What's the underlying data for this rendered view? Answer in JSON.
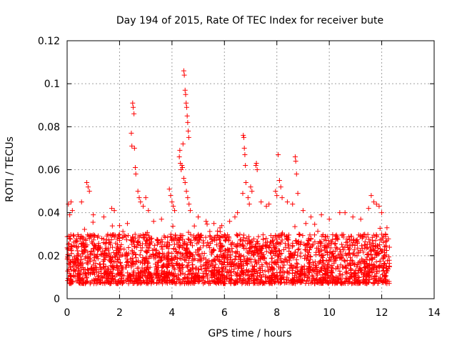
{
  "chart_data": {
    "type": "scatter",
    "title": "Day 194 of 2015, Rate Of TEC Index for receiver bute",
    "xlabel": "GPS time / hours",
    "ylabel": "ROTI / TECUs",
    "xlim": [
      0,
      14
    ],
    "ylim": [
      0,
      0.12
    ],
    "xticks": [
      0,
      2,
      4,
      6,
      8,
      10,
      12,
      14
    ],
    "xtick_labels": [
      "0",
      "2",
      "4",
      "6",
      "8",
      "10",
      "12",
      "14"
    ],
    "yticks": [
      0,
      0.02,
      0.04,
      0.06,
      0.08,
      0.1,
      0.12
    ],
    "ytick_labels": [
      "0",
      "0.02",
      "0.04",
      "0.06",
      "0.08",
      "0.1",
      "0.12"
    ],
    "grid": true,
    "marker": "+",
    "color": "#ff0000",
    "data_x_range": [
      0,
      12.3
    ],
    "typical_range": [
      0.007,
      0.03
    ],
    "series": [
      {
        "name": "ROTI",
        "points": [
          [
            0.05,
            0.044
          ],
          [
            0.1,
            0.039
          ],
          [
            0.15,
            0.045
          ],
          [
            0.2,
            0.041
          ],
          [
            0.55,
            0.045
          ],
          [
            0.75,
            0.054
          ],
          [
            0.8,
            0.052
          ],
          [
            0.85,
            0.05
          ],
          [
            1.0,
            0.039
          ],
          [
            1.4,
            0.038
          ],
          [
            1.7,
            0.042
          ],
          [
            1.8,
            0.041
          ],
          [
            2.0,
            0.034
          ],
          [
            2.3,
            0.035
          ],
          [
            2.45,
            0.077
          ],
          [
            2.47,
            0.071
          ],
          [
            2.5,
            0.091
          ],
          [
            2.52,
            0.089
          ],
          [
            2.55,
            0.086
          ],
          [
            2.57,
            0.07
          ],
          [
            2.6,
            0.061
          ],
          [
            2.62,
            0.058
          ],
          [
            2.7,
            0.05
          ],
          [
            2.75,
            0.047
          ],
          [
            2.8,
            0.045
          ],
          [
            2.9,
            0.043
          ],
          [
            3.0,
            0.047
          ],
          [
            3.1,
            0.041
          ],
          [
            3.3,
            0.036
          ],
          [
            3.6,
            0.037
          ],
          [
            3.9,
            0.051
          ],
          [
            3.95,
            0.048
          ],
          [
            4.0,
            0.045
          ],
          [
            4.05,
            0.043
          ],
          [
            4.1,
            0.041
          ],
          [
            4.28,
            0.066
          ],
          [
            4.3,
            0.069
          ],
          [
            4.32,
            0.063
          ],
          [
            4.35,
            0.06
          ],
          [
            4.38,
            0.062
          ],
          [
            4.4,
            0.061
          ],
          [
            4.42,
            0.072
          ],
          [
            4.45,
            0.106
          ],
          [
            4.47,
            0.104
          ],
          [
            4.5,
            0.097
          ],
          [
            4.52,
            0.095
          ],
          [
            4.54,
            0.091
          ],
          [
            4.56,
            0.089
          ],
          [
            4.58,
            0.085
          ],
          [
            4.6,
            0.082
          ],
          [
            4.62,
            0.078
          ],
          [
            4.64,
            0.075
          ],
          [
            4.45,
            0.056
          ],
          [
            4.5,
            0.054
          ],
          [
            4.55,
            0.05
          ],
          [
            4.6,
            0.047
          ],
          [
            4.65,
            0.044
          ],
          [
            4.7,
            0.041
          ],
          [
            5.0,
            0.038
          ],
          [
            5.3,
            0.036
          ],
          [
            5.6,
            0.035
          ],
          [
            5.9,
            0.034
          ],
          [
            6.2,
            0.036
          ],
          [
            6.4,
            0.038
          ],
          [
            6.5,
            0.04
          ],
          [
            6.7,
            0.049
          ],
          [
            6.72,
            0.076
          ],
          [
            6.74,
            0.075
          ],
          [
            6.76,
            0.07
          ],
          [
            6.78,
            0.067
          ],
          [
            6.8,
            0.062
          ],
          [
            6.82,
            0.054
          ],
          [
            6.9,
            0.047
          ],
          [
            6.95,
            0.044
          ],
          [
            7.0,
            0.052
          ],
          [
            7.05,
            0.05
          ],
          [
            7.2,
            0.062
          ],
          [
            7.22,
            0.063
          ],
          [
            7.25,
            0.06
          ],
          [
            7.4,
            0.045
          ],
          [
            7.6,
            0.043
          ],
          [
            7.7,
            0.044
          ],
          [
            7.95,
            0.05
          ],
          [
            8.0,
            0.048
          ],
          [
            8.05,
            0.067
          ],
          [
            8.1,
            0.055
          ],
          [
            8.15,
            0.052
          ],
          [
            8.2,
            0.047
          ],
          [
            8.4,
            0.045
          ],
          [
            8.6,
            0.044
          ],
          [
            8.7,
            0.066
          ],
          [
            8.72,
            0.064
          ],
          [
            8.75,
            0.058
          ],
          [
            8.8,
            0.049
          ],
          [
            9.0,
            0.041
          ],
          [
            9.3,
            0.038
          ],
          [
            9.7,
            0.039
          ],
          [
            10.0,
            0.037
          ],
          [
            10.4,
            0.04
          ],
          [
            10.6,
            0.04
          ],
          [
            10.9,
            0.038
          ],
          [
            11.2,
            0.037
          ],
          [
            11.5,
            0.042
          ],
          [
            11.6,
            0.048
          ],
          [
            11.7,
            0.045
          ],
          [
            11.8,
            0.044
          ],
          [
            11.9,
            0.043
          ],
          [
            12.0,
            0.04
          ],
          [
            12.2,
            0.033
          ]
        ]
      }
    ]
  }
}
